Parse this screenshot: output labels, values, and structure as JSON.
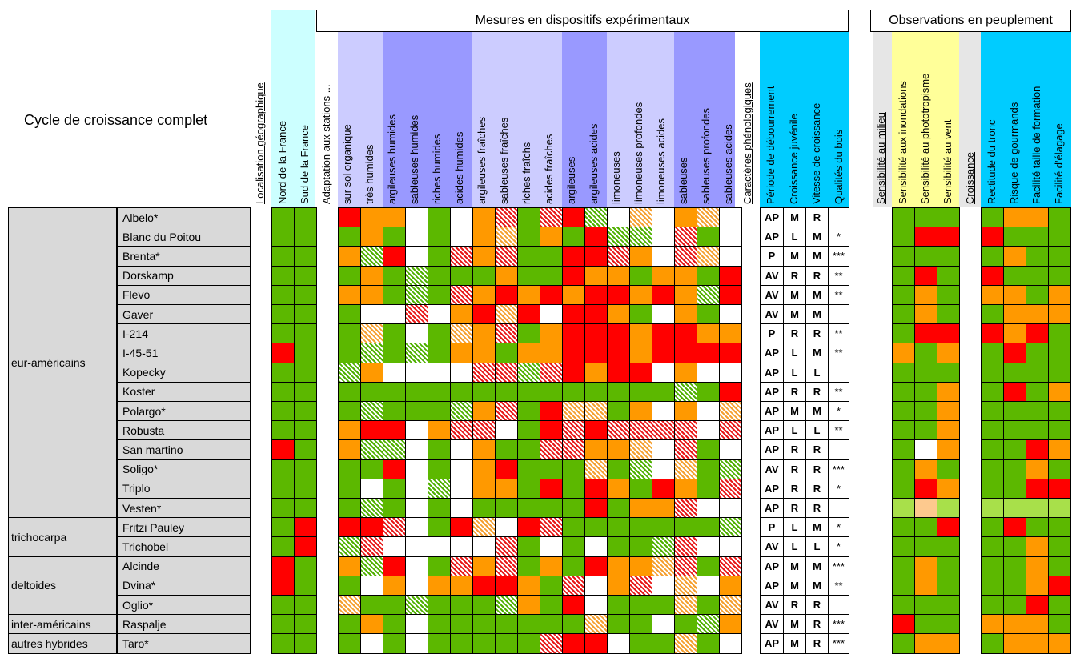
{
  "title": "Cycle de croissance complet",
  "top_headers": {
    "mesures": "Mesures en dispositifs expérimentaux",
    "observations": "Observations en peuplement"
  },
  "columns": {
    "localisation": "Localisation géographique",
    "nord": "Nord de la France",
    "sud": "Sud de la France",
    "adaptation": "Adaptation aux stations ...",
    "stations": [
      "sur sol organique",
      "très humides",
      "argileuses humides",
      "sableuses humides",
      "riches humides",
      "acides humides",
      "argileuses fraîches",
      "sableuses fraîches",
      "riches fraîchs",
      "acides fraîches",
      "argileuses",
      "argileuses acides",
      "limoneuses",
      "limoneuses profondes",
      "limoneuses acides",
      "sableuses",
      "sableuses profondes",
      "sableuses acides"
    ],
    "caracteres": "Caractères phénologiques",
    "pheno": [
      "Période de débourrement",
      "Croissance juvénile",
      "Vitesse de croissance",
      "Qualités du bois"
    ],
    "sensibilite": "Sensibilité au milieu",
    "sens": [
      "Sensibilité aux inondations",
      "Sensibilité au phototropisme",
      "Sensibilité au vent"
    ],
    "croissance": "Croissance",
    "crois": [
      "Rectitude du tronc",
      "Risque de gourmands",
      "Facilité taille de formation",
      "Facilité d'élagage"
    ]
  },
  "colors": {
    "green": "#5cb800",
    "orange": "#ff9900",
    "red": "#ff0000",
    "light_green": "#a8e04a",
    "light_orange": "#fdc98e",
    "white": "#ffffff",
    "gray": "#d9d9d9"
  },
  "groups": [
    {
      "label": "eur-américains",
      "span": 16
    },
    {
      "label": "trichocarpa",
      "span": 2
    },
    {
      "label": "deltoides",
      "span": 3
    },
    {
      "label": "inter-américains",
      "span": 1
    },
    {
      "label": "autres hybrides",
      "span": 1
    }
  ],
  "rows": [
    {
      "name": "Albelo*",
      "loc": [
        "G",
        "G"
      ],
      "st": [
        "R",
        "O",
        "O",
        "W",
        "G",
        "W",
        "O",
        "hR",
        "G",
        "hR",
        "R",
        "hG",
        "W",
        "hO",
        "W",
        "O",
        "hO",
        "W"
      ],
      "ph": [
        "AP",
        "M",
        "R",
        ""
      ],
      "sens": [
        "G",
        "G",
        "G"
      ],
      "cr": [
        "G",
        "O",
        "O",
        "G"
      ]
    },
    {
      "name": "Blanc du Poitou",
      "loc": [
        "G",
        "G"
      ],
      "st": [
        "G",
        "O",
        "G",
        "W",
        "G",
        "W",
        "O",
        "hO",
        "G",
        "O",
        "G",
        "R",
        "hG",
        "hG",
        "W",
        "hR",
        "G",
        "W"
      ],
      "ph": [
        "AP",
        "L",
        "M",
        "*"
      ],
      "sens": [
        "G",
        "R",
        "R"
      ],
      "cr": [
        "R",
        "G",
        "G",
        "G"
      ]
    },
    {
      "name": "Brenta*",
      "loc": [
        "G",
        "G"
      ],
      "st": [
        "O",
        "hG",
        "R",
        "W",
        "G",
        "hR",
        "O",
        "hR",
        "G",
        "G",
        "R",
        "R",
        "hR",
        "O",
        "W",
        "hR",
        "hO",
        "W"
      ],
      "ph": [
        "P",
        "M",
        "M",
        "***"
      ],
      "sens": [
        "G",
        "G",
        "G"
      ],
      "cr": [
        "G",
        "O",
        "G",
        "G"
      ]
    },
    {
      "name": "Dorskamp",
      "loc": [
        "G",
        "G"
      ],
      "st": [
        "G",
        "O",
        "G",
        "hG",
        "G",
        "G",
        "G",
        "O",
        "G",
        "G",
        "R",
        "O",
        "O",
        "G",
        "O",
        "O",
        "G",
        "R"
      ],
      "ph": [
        "AV",
        "R",
        "R",
        "**"
      ],
      "sens": [
        "G",
        "R",
        "G"
      ],
      "cr": [
        "R",
        "G",
        "G",
        "G"
      ]
    },
    {
      "name": "Flevo",
      "loc": [
        "G",
        "G"
      ],
      "st": [
        "O",
        "O",
        "G",
        "hG",
        "G",
        "hR",
        "O",
        "R",
        "O",
        "R",
        "O",
        "R",
        "R",
        "O",
        "R",
        "O",
        "hG",
        "R"
      ],
      "ph": [
        "AV",
        "M",
        "M",
        "**"
      ],
      "sens": [
        "G",
        "O",
        "G"
      ],
      "cr": [
        "O",
        "O",
        "G",
        "O"
      ]
    },
    {
      "name": "Gaver",
      "loc": [
        "G",
        "G"
      ],
      "st": [
        "G",
        "W",
        "W",
        "hR",
        "W",
        "O",
        "R",
        "hO",
        "R",
        "W",
        "R",
        "R",
        "O",
        "G",
        "W",
        "O",
        "G",
        "W"
      ],
      "ph": [
        "AV",
        "M",
        "M",
        ""
      ],
      "sens": [
        "G",
        "O",
        "G"
      ],
      "cr": [
        "G",
        "O",
        "O",
        "O"
      ]
    },
    {
      "name": "I-214",
      "loc": [
        "G",
        "G"
      ],
      "st": [
        "G",
        "hO",
        "G",
        "W",
        "G",
        "hO",
        "O",
        "hR",
        "G",
        "O",
        "R",
        "R",
        "R",
        "O",
        "R",
        "R",
        "O",
        "O"
      ],
      "ph": [
        "P",
        "R",
        "R",
        "**"
      ],
      "sens": [
        "G",
        "R",
        "R"
      ],
      "cr": [
        "R",
        "O",
        "R",
        "G"
      ]
    },
    {
      "name": "I-45-51",
      "loc": [
        "R",
        "G"
      ],
      "st": [
        "G",
        "hG",
        "G",
        "hG",
        "G",
        "O",
        "O",
        "G",
        "O",
        "O",
        "R",
        "R",
        "R",
        "O",
        "R",
        "R",
        "R",
        "R"
      ],
      "ph": [
        "AP",
        "L",
        "M",
        "**"
      ],
      "sens": [
        "O",
        "G",
        "O"
      ],
      "cr": [
        "G",
        "R",
        "G",
        "G"
      ]
    },
    {
      "name": "Kopecky",
      "loc": [
        "G",
        "G"
      ],
      "st": [
        "hG",
        "O",
        "W",
        "W",
        "W",
        "W",
        "hR",
        "hR",
        "hG",
        "hR",
        "R",
        "O",
        "R",
        "R",
        "W",
        "O",
        "W",
        "W"
      ],
      "ph": [
        "AP",
        "L",
        "L",
        ""
      ],
      "sens": [
        "G",
        "G",
        "G"
      ],
      "cr": [
        "G",
        "G",
        "G",
        "G"
      ]
    },
    {
      "name": "Koster",
      "loc": [
        "G",
        "G"
      ],
      "st": [
        "G",
        "G",
        "G",
        "G",
        "G",
        "G",
        "G",
        "G",
        "G",
        "G",
        "G",
        "G",
        "G",
        "G",
        "G",
        "hG",
        "G",
        "R"
      ],
      "ph": [
        "AP",
        "R",
        "R",
        "**"
      ],
      "sens": [
        "G",
        "G",
        "O"
      ],
      "cr": [
        "G",
        "R",
        "G",
        "O"
      ]
    },
    {
      "name": "Polargo*",
      "loc": [
        "G",
        "G"
      ],
      "st": [
        "G",
        "hG",
        "G",
        "G",
        "G",
        "hG",
        "O",
        "hR",
        "G",
        "R",
        "hO",
        "hO",
        "G",
        "O",
        "W",
        "O",
        "W",
        "hO"
      ],
      "ph": [
        "AP",
        "M",
        "M",
        "*"
      ],
      "sens": [
        "G",
        "G",
        "O"
      ],
      "cr": [
        "G",
        "G",
        "G",
        "G"
      ]
    },
    {
      "name": "Robusta",
      "loc": [
        "G",
        "G"
      ],
      "st": [
        "O",
        "R",
        "R",
        "W",
        "O",
        "hR",
        "hR",
        "W",
        "G",
        "R",
        "hR",
        "R",
        "hR",
        "hR",
        "hR",
        "hR",
        "W",
        "hR"
      ],
      "ph": [
        "AP",
        "L",
        "L",
        "**"
      ],
      "sens": [
        "G",
        "G",
        "O"
      ],
      "cr": [
        "G",
        "G",
        "G",
        "G"
      ]
    },
    {
      "name": "San martino",
      "loc": [
        "R",
        "G"
      ],
      "st": [
        "O",
        "hG",
        "hG",
        "W",
        "G",
        "W",
        "O",
        "G",
        "G",
        "hR",
        "hR",
        "O",
        "O",
        "hO",
        "W",
        "hR",
        "G",
        "W"
      ],
      "ph": [
        "AP",
        "R",
        "R",
        ""
      ],
      "sens": [
        "G",
        "W",
        "O"
      ],
      "cr": [
        "G",
        "G",
        "R",
        "O"
      ]
    },
    {
      "name": "Soligo*",
      "loc": [
        "G",
        "G"
      ],
      "st": [
        "G",
        "G",
        "R",
        "W",
        "G",
        "W",
        "O",
        "R",
        "G",
        "G",
        "G",
        "hO",
        "G",
        "hG",
        "W",
        "hO",
        "G",
        "hG"
      ],
      "ph": [
        "AV",
        "R",
        "R",
        "***"
      ],
      "sens": [
        "G",
        "O",
        "G"
      ],
      "cr": [
        "G",
        "G",
        "O",
        "G"
      ]
    },
    {
      "name": "Triplo",
      "loc": [
        "G",
        "G"
      ],
      "st": [
        "G",
        "W",
        "G",
        "W",
        "hG",
        "W",
        "O",
        "O",
        "G",
        "R",
        "G",
        "R",
        "O",
        "G",
        "R",
        "O",
        "G",
        "hR"
      ],
      "ph": [
        "AP",
        "R",
        "R",
        "*"
      ],
      "sens": [
        "G",
        "R",
        "O"
      ],
      "cr": [
        "G",
        "G",
        "R",
        "R"
      ]
    },
    {
      "name": "Vesten*",
      "loc": [
        "G",
        "G"
      ],
      "st": [
        "G",
        "hG",
        "G",
        "W",
        "G",
        "W",
        "G",
        "G",
        "G",
        "G",
        "G",
        "R",
        "G",
        "O",
        "O",
        "hR",
        "W",
        "W"
      ],
      "ph": [
        "AP",
        "R",
        "R",
        ""
      ],
      "sens": [
        "LG",
        "LO",
        "LG"
      ],
      "cr": [
        "LG",
        "LG",
        "LG",
        "LG"
      ]
    },
    {
      "name": "Fritzi Pauley",
      "loc": [
        "G",
        "R"
      ],
      "st": [
        "R",
        "R",
        "hR",
        "W",
        "G",
        "R",
        "hO",
        "W",
        "R",
        "hR",
        "G",
        "G",
        "G",
        "G",
        "G",
        "G",
        "G",
        "hG"
      ],
      "ph": [
        "P",
        "L",
        "M",
        "*"
      ],
      "sens": [
        "G",
        "G",
        "R"
      ],
      "cr": [
        "G",
        "R",
        "G",
        "G"
      ]
    },
    {
      "name": "Trichobel",
      "loc": [
        "G",
        "R"
      ],
      "st": [
        "hG",
        "hR",
        "W",
        "W",
        "W",
        "W",
        "W",
        "hR",
        "G",
        "W",
        "G",
        "W",
        "G",
        "G",
        "hG",
        "hR",
        "W",
        "W"
      ],
      "ph": [
        "AV",
        "L",
        "L",
        "*"
      ],
      "sens": [
        "G",
        "G",
        "G"
      ],
      "cr": [
        "G",
        "G",
        "O",
        "G"
      ]
    },
    {
      "name": "Alcinde",
      "loc": [
        "R",
        "G"
      ],
      "st": [
        "O",
        "hG",
        "R",
        "W",
        "G",
        "hR",
        "O",
        "hR",
        "G",
        "O",
        "G",
        "R",
        "O",
        "O",
        "hO",
        "hR",
        "G",
        "hR"
      ],
      "ph": [
        "AP",
        "M",
        "M",
        "***"
      ],
      "sens": [
        "G",
        "O",
        "G"
      ],
      "cr": [
        "G",
        "G",
        "O",
        "G"
      ]
    },
    {
      "name": "Dvina*",
      "loc": [
        "R",
        "G"
      ],
      "st": [
        "G",
        "W",
        "O",
        "W",
        "O",
        "O",
        "R",
        "R",
        "O",
        "G",
        "hR",
        "W",
        "O",
        "hR",
        "W",
        "hO",
        "W",
        "O"
      ],
      "ph": [
        "AP",
        "M",
        "M",
        "**"
      ],
      "sens": [
        "G",
        "O",
        "G"
      ],
      "cr": [
        "G",
        "G",
        "O",
        "R"
      ]
    },
    {
      "name": "Oglio*",
      "loc": [
        "G",
        "G"
      ],
      "st": [
        "hO",
        "G",
        "G",
        "hG",
        "G",
        "G",
        "G",
        "hG",
        "O",
        "G",
        "R",
        "W",
        "G",
        "G",
        "G",
        "hO",
        "G",
        "hO"
      ],
      "ph": [
        "AV",
        "R",
        "R",
        ""
      ],
      "sens": [
        "G",
        "G",
        "G"
      ],
      "cr": [
        "G",
        "G",
        "R",
        "G"
      ]
    },
    {
      "name": "Raspalje",
      "loc": [
        "G",
        "G"
      ],
      "st": [
        "G",
        "O",
        "G",
        "W",
        "G",
        "G",
        "G",
        "G",
        "G",
        "G",
        "G",
        "hO",
        "G",
        "G",
        "W",
        "G",
        "hG",
        "O"
      ],
      "ph": [
        "AV",
        "M",
        "R",
        "***"
      ],
      "sens": [
        "R",
        "G",
        "G"
      ],
      "cr": [
        "O",
        "O",
        "O",
        "G"
      ]
    },
    {
      "name": "Taro*",
      "loc": [
        "G",
        "G"
      ],
      "st": [
        "G",
        "W",
        "G",
        "W",
        "G",
        "G",
        "G",
        "G",
        "G",
        "hR",
        "R",
        "R",
        "W",
        "G",
        "G",
        "hO",
        "G",
        "W"
      ],
      "ph": [
        "AP",
        "M",
        "R",
        "***"
      ],
      "sens": [
        "G",
        "O",
        "O"
      ],
      "cr": [
        "G",
        "O",
        "O",
        "O"
      ]
    }
  ]
}
